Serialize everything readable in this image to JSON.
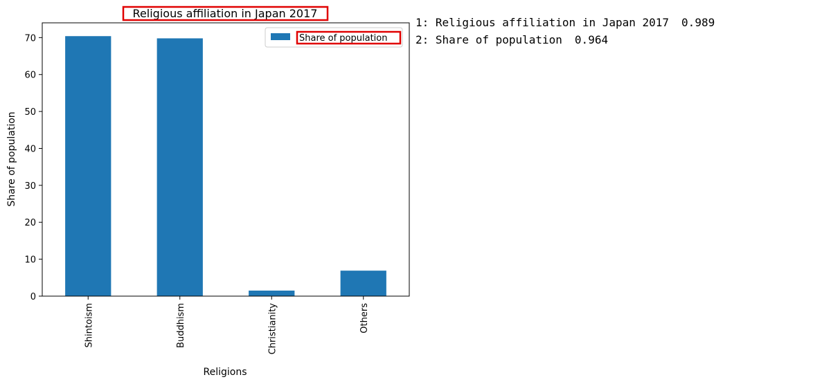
{
  "chart_data": {
    "type": "bar",
    "title": "Religious affiliation in Japan 2017",
    "xlabel": "Religions",
    "ylabel": "Share of population",
    "categories": [
      "Shintoism",
      "Buddhism",
      "Christianity",
      "Others"
    ],
    "series": [
      {
        "name": "Share of population",
        "values": [
          70.4,
          69.8,
          1.5,
          6.9
        ]
      }
    ],
    "ylim": [
      0,
      74
    ],
    "yticks": [
      0,
      10,
      20,
      30,
      40,
      50,
      60,
      70
    ],
    "grid": false,
    "legend": "top-right",
    "bar_color": "#1f77b4"
  },
  "annotations": {
    "highlight_color": "#e00000",
    "items": [
      {
        "label": "1: Religious affiliation in Japan 2017",
        "score": "0.989"
      },
      {
        "label": "2: Share of population",
        "score": "0.964"
      }
    ]
  }
}
